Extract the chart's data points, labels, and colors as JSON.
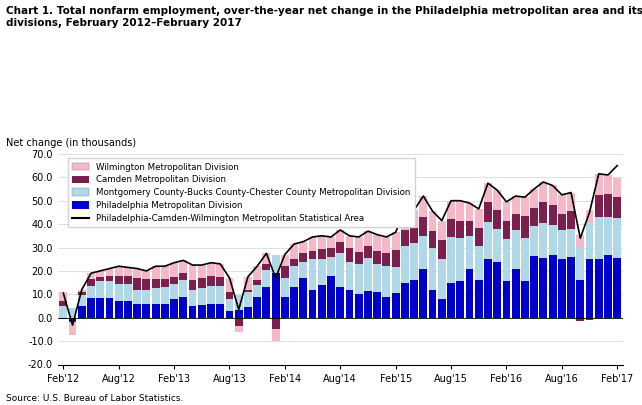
{
  "title_line1": "Chart 1. Total nonfarm employment, over-the-year net change in the Philadelphia metropolitan area and its",
  "title_line2": "divisions, February 2012–February 2017",
  "ylabel": "Net change (in thousands)",
  "source": "Source: U.S. Bureau of Labor Statistics.",
  "ylim": [
    -20.0,
    70.0
  ],
  "yticks": [
    -20.0,
    -10.0,
    0.0,
    10.0,
    20.0,
    30.0,
    40.0,
    50.0,
    60.0,
    70.0
  ],
  "xtick_labels": [
    "Feb'12",
    "Aug'12",
    "Feb'13",
    "Aug'13",
    "Feb'14",
    "Aug'14",
    "Feb'15",
    "Aug'15",
    "Feb'16",
    "Aug'16",
    "Feb'17"
  ],
  "xtick_positions": [
    0,
    6,
    12,
    18,
    24,
    30,
    36,
    42,
    48,
    54,
    60
  ],
  "colors": {
    "philadelphia": "#0000CC",
    "montgomery": "#B0D8E8",
    "camden": "#7B1F4E",
    "wilmington": "#F4B8C8",
    "line": "#000000"
  },
  "legend_labels": [
    "Wilmington Metropolitan Division",
    "Camden Metropolitan Division",
    "Montgomery County-Bucks County-Chester County Metropolitan Division",
    "Philadelphia Metropolitan Division",
    "Philadelphia-Camden-Wilmington Metropolitan Statistical Area"
  ],
  "philadelphia": [
    -0.5,
    -1.2,
    5.0,
    8.5,
    8.5,
    8.5,
    7.0,
    7.0,
    6.0,
    6.0,
    6.0,
    6.0,
    8.0,
    9.0,
    5.0,
    5.5,
    6.0,
    6.0,
    3.0,
    3.5,
    4.5,
    9.0,
    13.0,
    19.0,
    9.0,
    13.0,
    17.0,
    12.0,
    14.0,
    18.0,
    13.0,
    12.0,
    10.0,
    11.5,
    11.0,
    9.0,
    10.5,
    15.0,
    16.0,
    21.0,
    12.0,
    8.0,
    15.0,
    15.5,
    21.0,
    16.0,
    25.0,
    24.0,
    15.5,
    21.0,
    15.5,
    26.5,
    25.5,
    27.0,
    25.0,
    26.0,
    16.0,
    25.0,
    25.0,
    27.0,
    25.5
  ],
  "montgomery": [
    5.0,
    4.0,
    4.5,
    5.0,
    7.0,
    7.0,
    7.5,
    7.5,
    6.0,
    6.0,
    6.5,
    7.0,
    6.5,
    7.0,
    7.0,
    7.0,
    7.5,
    7.5,
    5.0,
    6.0,
    6.5,
    5.0,
    7.5,
    8.0,
    8.0,
    9.0,
    7.0,
    13.0,
    11.0,
    8.0,
    14.5,
    12.0,
    13.0,
    14.0,
    12.0,
    13.0,
    11.0,
    15.5,
    16.0,
    14.0,
    18.0,
    17.0,
    19.5,
    18.5,
    14.0,
    14.5,
    16.0,
    14.0,
    18.0,
    16.5,
    18.5,
    12.5,
    15.0,
    12.5,
    12.5,
    12.0,
    14.0,
    15.5,
    18.0,
    16.0,
    17.0
  ],
  "camden": [
    2.0,
    -0.5,
    1.5,
    3.0,
    2.0,
    2.5,
    3.5,
    3.5,
    5.0,
    4.5,
    4.0,
    3.5,
    3.0,
    3.0,
    4.0,
    4.5,
    4.5,
    4.0,
    3.0,
    -3.5,
    1.0,
    2.0,
    2.5,
    -5.0,
    5.0,
    3.0,
    3.5,
    3.5,
    4.5,
    4.0,
    5.0,
    6.0,
    5.0,
    5.0,
    5.5,
    5.5,
    7.5,
    7.0,
    6.5,
    8.0,
    7.0,
    8.0,
    7.5,
    7.5,
    6.5,
    8.0,
    8.5,
    8.0,
    8.0,
    7.0,
    9.5,
    8.0,
    9.0,
    8.5,
    7.0,
    7.5,
    -1.5,
    -1.0,
    9.5,
    10.0,
    9.0
  ],
  "wilmington": [
    4.0,
    -5.5,
    1.0,
    2.5,
    2.5,
    3.0,
    4.0,
    3.5,
    4.0,
    3.5,
    5.5,
    5.5,
    6.0,
    5.5,
    6.5,
    5.5,
    5.5,
    5.5,
    6.0,
    -2.5,
    5.5,
    6.0,
    4.5,
    -5.0,
    5.0,
    6.5,
    5.0,
    6.0,
    5.5,
    4.5,
    5.0,
    5.0,
    6.5,
    6.5,
    7.0,
    7.0,
    7.5,
    8.5,
    7.5,
    9.0,
    8.5,
    8.5,
    8.0,
    8.5,
    7.5,
    8.0,
    8.0,
    8.5,
    8.0,
    7.5,
    8.0,
    8.0,
    8.5,
    8.5,
    8.0,
    8.0,
    5.5,
    5.5,
    9.0,
    8.0,
    8.0
  ],
  "msa_line": [
    10.5,
    -3.2,
    12.0,
    19.0,
    20.0,
    21.0,
    22.0,
    21.5,
    21.0,
    20.0,
    22.0,
    22.0,
    23.5,
    24.5,
    22.5,
    22.5,
    23.5,
    23.0,
    17.0,
    3.5,
    17.5,
    22.0,
    27.5,
    17.0,
    27.0,
    31.5,
    32.5,
    34.5,
    35.0,
    34.5,
    37.5,
    35.0,
    34.5,
    37.0,
    35.5,
    34.5,
    36.5,
    46.0,
    46.0,
    52.0,
    45.5,
    41.5,
    50.0,
    50.0,
    49.0,
    46.5,
    57.5,
    54.5,
    49.5,
    52.0,
    51.5,
    55.0,
    58.0,
    56.5,
    52.5,
    53.5,
    34.0,
    45.0,
    61.5,
    61.0,
    65.0
  ]
}
